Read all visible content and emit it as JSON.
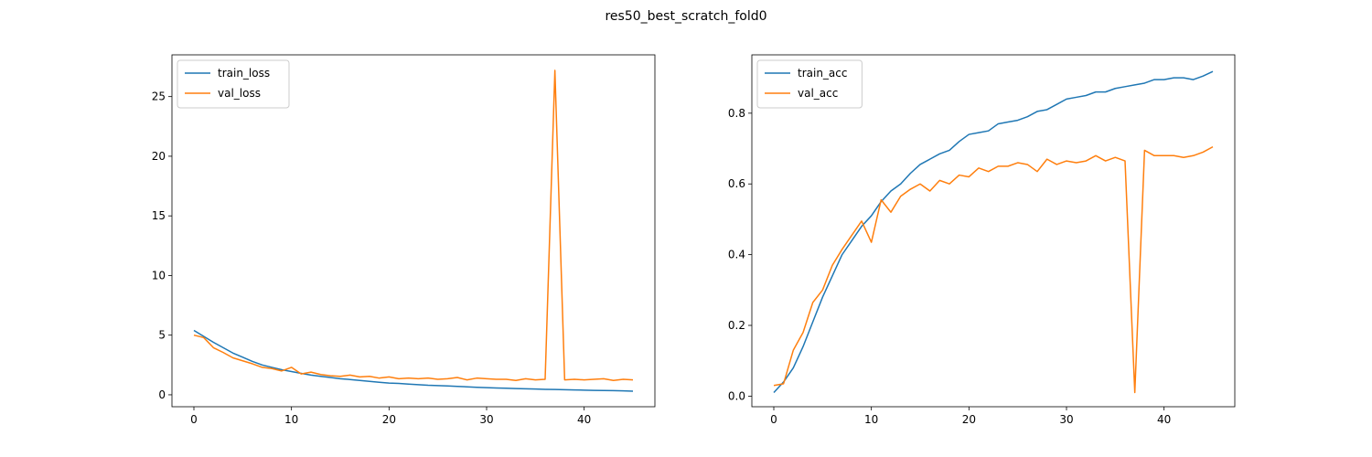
{
  "figure": {
    "title": "res50_best_scratch_fold0"
  },
  "chart_data": [
    {
      "type": "line",
      "title": "",
      "xlabel": "",
      "ylabel": "",
      "xlim": [
        -2.25,
        47.25
      ],
      "ylim": [
        -1.0,
        28.5
      ],
      "xticks": [
        0,
        10,
        20,
        30,
        40
      ],
      "yticks": [
        0,
        5,
        10,
        15,
        20,
        25
      ],
      "tick_labels_x": [
        "0",
        "10",
        "20",
        "30",
        "40"
      ],
      "tick_labels_y": [
        "0",
        "5",
        "10",
        "15",
        "20",
        "25"
      ],
      "legend": "upper-left",
      "grid": false,
      "x": [
        0,
        1,
        2,
        3,
        4,
        5,
        6,
        7,
        8,
        9,
        10,
        11,
        12,
        13,
        14,
        15,
        16,
        17,
        18,
        19,
        20,
        21,
        22,
        23,
        24,
        25,
        26,
        27,
        28,
        29,
        30,
        31,
        32,
        33,
        34,
        35,
        36,
        37,
        38,
        39,
        40,
        41,
        42,
        43,
        44,
        45
      ],
      "series": [
        {
          "name": "train_loss",
          "color": "#1f77b4",
          "values": [
            5.4,
            4.9,
            4.4,
            3.95,
            3.5,
            3.15,
            2.8,
            2.5,
            2.3,
            2.1,
            1.95,
            1.8,
            1.65,
            1.55,
            1.45,
            1.35,
            1.28,
            1.2,
            1.13,
            1.05,
            0.98,
            0.95,
            0.9,
            0.85,
            0.8,
            0.77,
            0.74,
            0.7,
            0.67,
            0.63,
            0.6,
            0.57,
            0.55,
            0.52,
            0.5,
            0.48,
            0.46,
            0.45,
            0.43,
            0.41,
            0.39,
            0.37,
            0.36,
            0.35,
            0.33,
            0.3
          ]
        },
        {
          "name": "val_loss",
          "color": "#ff7f0e",
          "values": [
            5.0,
            4.8,
            3.95,
            3.55,
            3.1,
            2.85,
            2.6,
            2.3,
            2.2,
            2.0,
            2.3,
            1.75,
            1.9,
            1.7,
            1.6,
            1.55,
            1.65,
            1.5,
            1.55,
            1.4,
            1.5,
            1.35,
            1.4,
            1.35,
            1.4,
            1.3,
            1.35,
            1.45,
            1.25,
            1.4,
            1.35,
            1.3,
            1.3,
            1.2,
            1.35,
            1.25,
            1.3,
            27.2,
            1.25,
            1.3,
            1.25,
            1.3,
            1.35,
            1.2,
            1.3,
            1.25
          ]
        }
      ]
    },
    {
      "type": "line",
      "title": "",
      "xlabel": "",
      "ylabel": "",
      "xlim": [
        -2.25,
        47.25
      ],
      "ylim": [
        -0.03,
        0.965
      ],
      "xticks": [
        0,
        10,
        20,
        30,
        40
      ],
      "yticks": [
        0.0,
        0.2,
        0.4,
        0.6,
        0.8
      ],
      "tick_labels_x": [
        "0",
        "10",
        "20",
        "30",
        "40"
      ],
      "tick_labels_y": [
        "0.0",
        "0.2",
        "0.4",
        "0.6",
        "0.8"
      ],
      "legend": "upper-left",
      "grid": false,
      "x": [
        0,
        1,
        2,
        3,
        4,
        5,
        6,
        7,
        8,
        9,
        10,
        11,
        12,
        13,
        14,
        15,
        16,
        17,
        18,
        19,
        20,
        21,
        22,
        23,
        24,
        25,
        26,
        27,
        28,
        29,
        30,
        31,
        32,
        33,
        34,
        35,
        36,
        37,
        38,
        39,
        40,
        41,
        42,
        43,
        44,
        45
      ],
      "series": [
        {
          "name": "train_acc",
          "color": "#1f77b4",
          "values": [
            0.01,
            0.04,
            0.08,
            0.14,
            0.21,
            0.28,
            0.34,
            0.4,
            0.44,
            0.48,
            0.51,
            0.55,
            0.58,
            0.6,
            0.63,
            0.655,
            0.67,
            0.685,
            0.695,
            0.72,
            0.74,
            0.745,
            0.75,
            0.77,
            0.775,
            0.78,
            0.79,
            0.805,
            0.81,
            0.825,
            0.84,
            0.845,
            0.85,
            0.86,
            0.86,
            0.87,
            0.875,
            0.88,
            0.885,
            0.895,
            0.895,
            0.9,
            0.9,
            0.895,
            0.905,
            0.918
          ]
        },
        {
          "name": "val_acc",
          "color": "#ff7f0e",
          "values": [
            0.03,
            0.035,
            0.13,
            0.18,
            0.265,
            0.3,
            0.37,
            0.415,
            0.455,
            0.495,
            0.435,
            0.555,
            0.52,
            0.565,
            0.585,
            0.6,
            0.58,
            0.61,
            0.6,
            0.625,
            0.62,
            0.645,
            0.635,
            0.65,
            0.65,
            0.66,
            0.655,
            0.635,
            0.67,
            0.655,
            0.665,
            0.66,
            0.665,
            0.68,
            0.665,
            0.675,
            0.665,
            0.01,
            0.695,
            0.68,
            0.68,
            0.68,
            0.675,
            0.68,
            0.69,
            0.705
          ]
        }
      ]
    }
  ]
}
